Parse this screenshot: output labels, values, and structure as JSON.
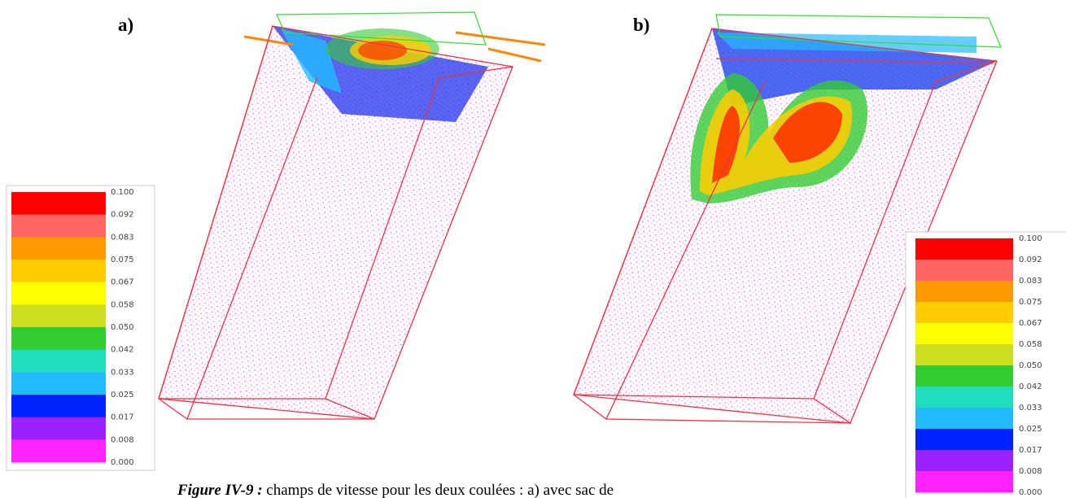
{
  "panels": [
    {
      "label": "a)",
      "legend": {
        "labels": [
          "0.100",
          "0.092",
          "0.083",
          "0.075",
          "0.067",
          "0.058",
          "0.050",
          "0.042",
          "0.033",
          "0.025",
          "0.017",
          "0.008",
          "0.000"
        ],
        "colors": [
          "#ff0000",
          "#ff6666",
          "#ff9900",
          "#ffcc00",
          "#ffff00",
          "#ccdd22",
          "#33cc33",
          "#22ddbb",
          "#22bbff",
          "#0022ff",
          "#9922ff",
          "#ff22ff"
        ]
      }
    },
    {
      "label": "b)",
      "legend": {
        "labels": [
          "0.100",
          "0.092",
          "0.083",
          "0.075",
          "0.067",
          "0.058",
          "0.050",
          "0.042",
          "0.033",
          "0.025",
          "0.017",
          "0.008",
          "0.000"
        ],
        "colors": [
          "#ff0000",
          "#ff6666",
          "#ff9900",
          "#ffcc00",
          "#ffff00",
          "#ccdd22",
          "#33cc33",
          "#22ddbb",
          "#22bbff",
          "#0022ff",
          "#9922ff",
          "#ff22ff"
        ]
      }
    }
  ],
  "caption": {
    "label": "Figure IV-9 :",
    "text": " champs de vitesse pour les deux coulées : a) avec sac de"
  }
}
